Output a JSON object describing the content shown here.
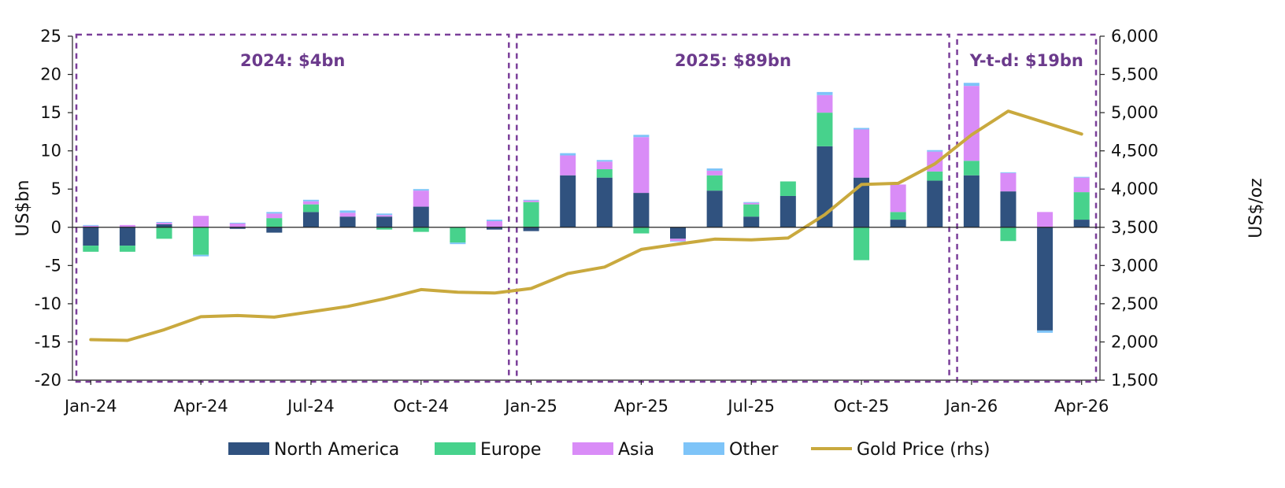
{
  "chart_data": {
    "type": "bar",
    "stacked": true,
    "categories": [
      "Jan-24",
      "Feb-24",
      "Mar-24",
      "Apr-24",
      "May-24",
      "Jun-24",
      "Jul-24",
      "Aug-24",
      "Sep-24",
      "Oct-24",
      "Nov-24",
      "Dec-24",
      "Jan-25",
      "Feb-25",
      "Mar-25",
      "Apr-25",
      "May-25",
      "Jun-25",
      "Jul-25",
      "Aug-25",
      "Sep-25",
      "Oct-25",
      "Nov-25",
      "Dec-25",
      "Jan-26",
      "Feb-26",
      "Mar-26",
      "Apr-26"
    ],
    "x_tick_labels": [
      "Jan-24",
      "Apr-24",
      "Jul-24",
      "Oct-24",
      "Jan-25",
      "Apr-25",
      "Jul-25",
      "Oct-25",
      "Jan-26",
      "Apr-26"
    ],
    "x_tick_indices": [
      0,
      3,
      6,
      9,
      12,
      15,
      18,
      21,
      24,
      27
    ],
    "ylabel": "US$bn",
    "ylim": [
      -20,
      25
    ],
    "y_ticks": [
      "25",
      "20",
      "15",
      "10",
      "5",
      "0",
      "-5",
      "-10",
      "-15",
      "-20"
    ],
    "y_tick_values": [
      25,
      20,
      15,
      10,
      5,
      0,
      -5,
      -10,
      -15,
      -20
    ],
    "y2label": "US$/oz",
    "y2lim": [
      1500,
      6000
    ],
    "y2_ticks": [
      "6,000",
      "5,500",
      "5,000",
      "4,500",
      "4,000",
      "3,500",
      "3,000",
      "2,500",
      "2,000",
      "1,500"
    ],
    "y2_tick_values": [
      6000,
      5500,
      5000,
      4500,
      4000,
      3500,
      3000,
      2500,
      2000,
      1500
    ],
    "series": [
      {
        "name": "North America",
        "color": "#30527f",
        "values": [
          -2.4,
          -2.4,
          0.4,
          0,
          -0.2,
          -0.7,
          2.0,
          1.4,
          1.4,
          2.7,
          0,
          -0.3,
          -0.5,
          6.8,
          6.5,
          4.5,
          -1.5,
          4.8,
          1.4,
          4.1,
          10.6,
          6.5,
          1.0,
          6.1,
          6.8,
          4.7,
          -13.5,
          1.0
        ]
      },
      {
        "name": "Europe",
        "color": "#47d28c",
        "values": [
          -0.8,
          -0.8,
          -1.5,
          -3.6,
          0,
          1.2,
          1.0,
          0,
          -0.3,
          -0.6,
          -2.0,
          0,
          3.3,
          0,
          1.1,
          -0.8,
          0,
          2.0,
          1.6,
          1.9,
          4.4,
          -4.3,
          1.0,
          1.2,
          1.9,
          -1.8,
          0,
          3.6
        ]
      },
      {
        "name": "Asia",
        "color": "#d98cf7",
        "values": [
          0.2,
          0.3,
          0.2,
          1.5,
          0.5,
          0.6,
          0.4,
          0.5,
          0.2,
          2.1,
          0,
          0.8,
          0.2,
          2.6,
          1.0,
          7.3,
          -0.3,
          0.6,
          0.2,
          0,
          2.3,
          6.3,
          3.6,
          2.6,
          9.8,
          2.4,
          2.0,
          1.9
        ]
      },
      {
        "name": "Other",
        "color": "#7ec4f8",
        "values": [
          0.1,
          0,
          0.1,
          -0.2,
          0.1,
          0.2,
          0.2,
          0.3,
          0.2,
          0.2,
          -0.2,
          0.2,
          0.1,
          0.3,
          0.2,
          0.3,
          -0.1,
          0.3,
          0.1,
          0,
          0.4,
          0.2,
          0,
          0.2,
          0.4,
          0.1,
          -0.3,
          0.1
        ]
      },
      {
        "name": "Gold Price (rhs)",
        "color": "#c9a93e",
        "type": "line",
        "axis": "right",
        "values": [
          2030,
          2020,
          2160,
          2330,
          2345,
          2325,
          2395,
          2465,
          2565,
          2685,
          2650,
          2640,
          2700,
          2895,
          2980,
          3210,
          3280,
          3345,
          3335,
          3360,
          3665,
          4060,
          4075,
          4330,
          4710,
          5020,
          4870,
          4720
        ]
      }
    ],
    "annotations": [
      {
        "text": "2024: $4bn",
        "start_index": 0,
        "end_index": 11
      },
      {
        "text": "2025: $89bn",
        "start_index": 12,
        "end_index": 23
      },
      {
        "text": "Y-t-d: $19bn",
        "start_index": 24,
        "end_index": 27
      }
    ],
    "annotation_color": "#7b3f9a",
    "legend_position": "bottom",
    "grid": false
  }
}
